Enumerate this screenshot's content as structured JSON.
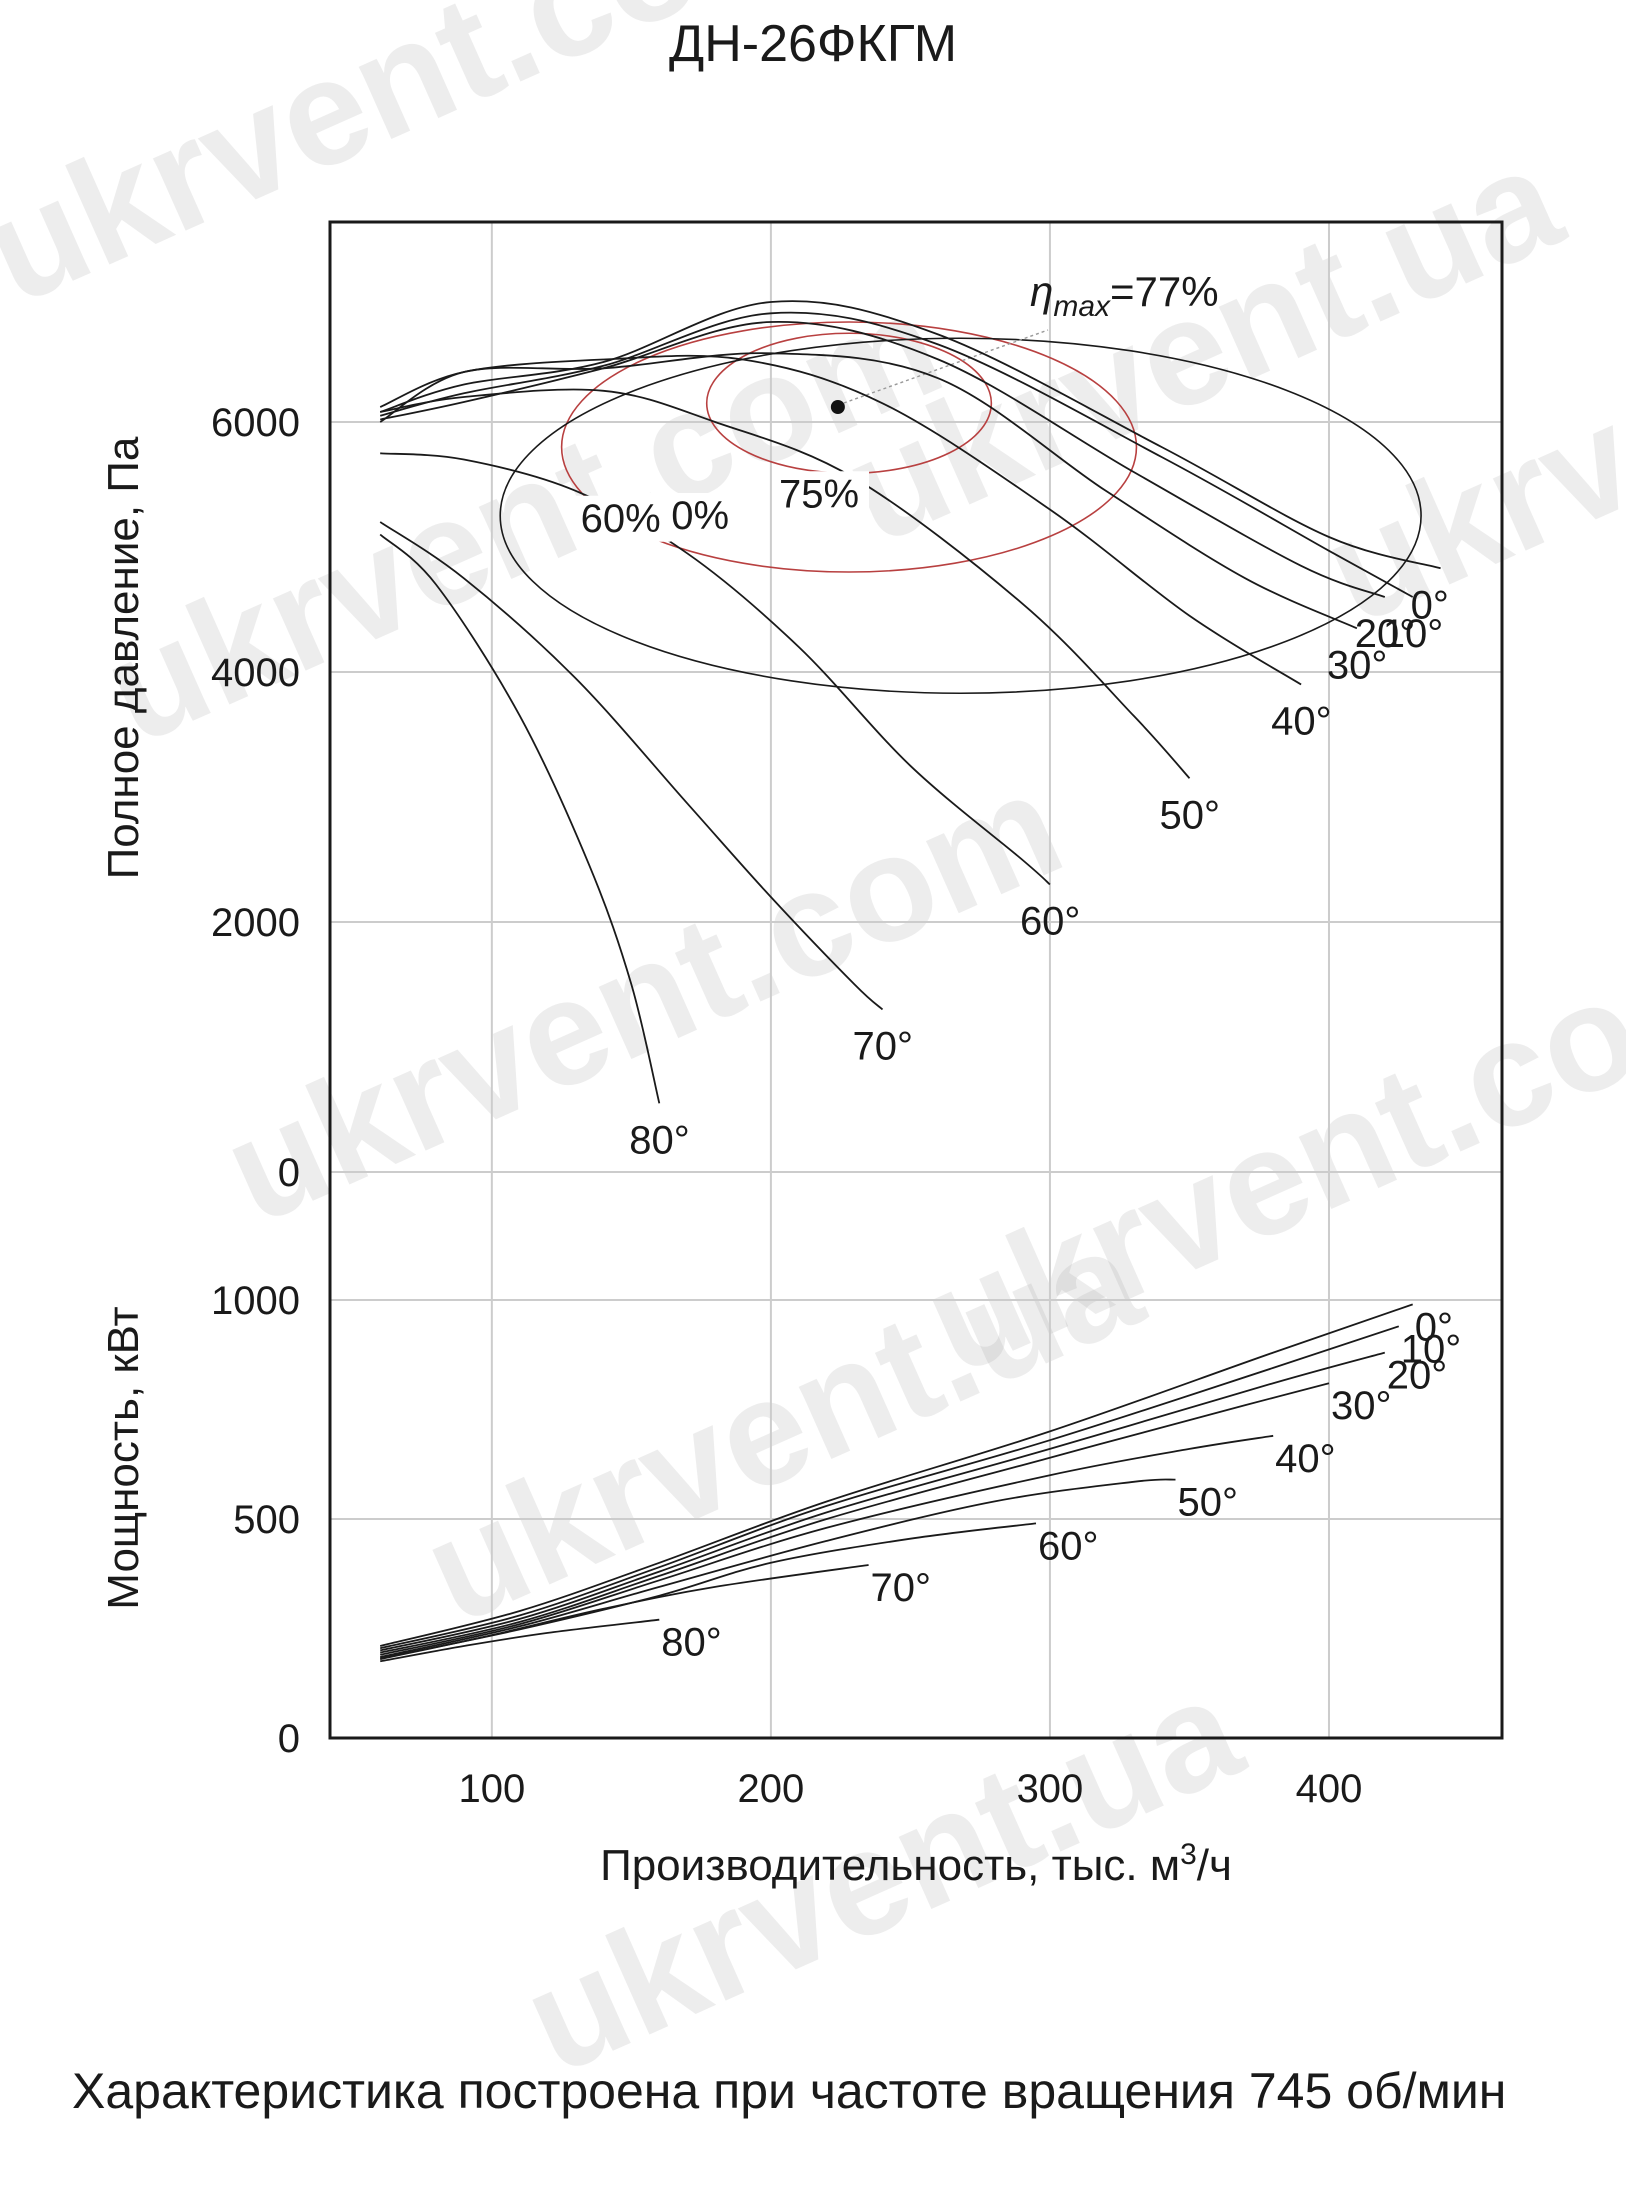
{
  "page": {
    "title": "ДН-26ФКГМ",
    "note": "Характеристика построена при частоте вращения 745 об/мин",
    "watermarks": [
      "ukrvent.com",
      "ukrvent.ua",
      "ukrvent.com",
      "ukrvent.ua",
      "ukrvent.com",
      "ukrvent.ua",
      "ukrvent.com",
      "ukrvent.ua"
    ]
  },
  "chart_data": [
    {
      "type": "line",
      "ylabel": "Полное давление, Па",
      "xlim": [
        42,
        462
      ],
      "ylim": [
        0,
        7600
      ],
      "yticks": [
        0,
        2000,
        4000,
        6000
      ],
      "grid": true,
      "color": "#1a1a1a",
      "efficiency_color": "#b84040",
      "eta_max_label": "ηmax=77%",
      "eta_max_point": {
        "x": 224,
        "y": 6120
      },
      "series": [
        {
          "name": "0°",
          "label": "0°",
          "x": [
            60,
            90,
            140,
            200,
            260,
            340,
            400,
            440
          ],
          "y": [
            6080,
            6300,
            6480,
            6960,
            6700,
            5800,
            5080,
            4830
          ]
        },
        {
          "name": "10°",
          "label": "10°",
          "x": [
            60,
            90,
            140,
            200,
            260,
            340,
            400,
            430
          ],
          "y": [
            6050,
            6230,
            6450,
            6870,
            6620,
            5720,
            4970,
            4600
          ]
        },
        {
          "name": "20°",
          "label": "20°",
          "x": [
            60,
            90,
            140,
            200,
            260,
            330,
            390,
            420
          ],
          "y": [
            6020,
            6160,
            6430,
            6800,
            6500,
            5600,
            4850,
            4600
          ]
        },
        {
          "name": "30°",
          "label": "30°",
          "x": [
            60,
            90,
            140,
            200,
            260,
            320,
            370,
            410
          ],
          "y": [
            6000,
            6400,
            6430,
            6550,
            6350,
            5450,
            4750,
            4350
          ]
        },
        {
          "name": "40°",
          "label": "40°",
          "x": [
            60,
            90,
            140,
            190,
            240,
            300,
            350,
            390
          ],
          "y": [
            6120,
            6400,
            6500,
            6500,
            6150,
            5300,
            4450,
            3900
          ]
        },
        {
          "name": "50°",
          "label": "50°",
          "x": [
            60,
            90,
            140,
            180,
            230,
            290,
            330,
            350
          ],
          "y": [
            6080,
            6200,
            6250,
            6000,
            5550,
            4550,
            3650,
            3150
          ]
        },
        {
          "name": "60°",
          "label": "60°",
          "x": [
            60,
            90,
            130,
            170,
            210,
            250,
            290,
            300
          ],
          "y": [
            5750,
            5700,
            5450,
            4950,
            4200,
            3250,
            2500,
            2300
          ]
        },
        {
          "name": "70°",
          "label": "70°",
          "x": [
            60,
            90,
            130,
            170,
            200,
            230,
            240
          ],
          "y": [
            5200,
            4750,
            3950,
            2950,
            2200,
            1500,
            1300
          ]
        },
        {
          "name": "80°",
          "label": "80°",
          "x": [
            60,
            80,
            110,
            135,
            150,
            160
          ],
          "y": [
            5100,
            4700,
            3650,
            2450,
            1500,
            550
          ]
        }
      ],
      "efficiency_contours": [
        {
          "label": "75%",
          "center": {
            "x": 228,
            "y": 6150
          },
          "rx": 51,
          "ry": 560
        },
        {
          "label": "70%",
          "center": {
            "x": 228,
            "y": 5800
          },
          "rx": 103,
          "ry": 1000
        },
        {
          "label": "60%",
          "center": {
            "x": 268,
            "y": 5250
          },
          "rx": 165,
          "ry": 1420
        }
      ]
    },
    {
      "type": "line",
      "ylabel": "Мощность, кВт",
      "xlabel": "Производительность, тыс. м³/ч",
      "xlim": [
        42,
        462
      ],
      "ylim": [
        0,
        1000
      ],
      "yticks": [
        0,
        500,
        1000
      ],
      "xticks": [
        100,
        200,
        300,
        400
      ],
      "grid": true,
      "series": [
        {
          "name": "0°",
          "label": "0°",
          "x": [
            60,
            110,
            160,
            220,
            300,
            380,
            430
          ],
          "y": [
            210,
            290,
            400,
            540,
            700,
            880,
            990
          ]
        },
        {
          "name": "10°",
          "label": "10°",
          "x": [
            60,
            110,
            160,
            220,
            300,
            380,
            425
          ],
          "y": [
            205,
            280,
            390,
            530,
            680,
            845,
            940
          ]
        },
        {
          "name": "20°",
          "label": "20°",
          "x": [
            60,
            110,
            160,
            220,
            300,
            380,
            420
          ],
          "y": [
            200,
            272,
            380,
            515,
            660,
            810,
            880
          ]
        },
        {
          "name": "30°",
          "label": "30°",
          "x": [
            60,
            110,
            160,
            220,
            300,
            370,
            400
          ],
          "y": [
            195,
            265,
            370,
            500,
            640,
            760,
            810
          ]
        },
        {
          "name": "40°",
          "label": "40°",
          "x": [
            60,
            110,
            160,
            220,
            300,
            350,
            380
          ],
          "y": [
            190,
            260,
            360,
            480,
            600,
            660,
            690
          ]
        },
        {
          "name": "50°",
          "label": "50°",
          "x": [
            60,
            110,
            160,
            220,
            280,
            330,
            345
          ],
          "y": [
            185,
            255,
            345,
            450,
            540,
            585,
            590
          ]
        },
        {
          "name": "60°",
          "label": "60°",
          "x": [
            60,
            110,
            160,
            200,
            250,
            295
          ],
          "y": [
            182,
            248,
            325,
            400,
            455,
            490
          ]
        },
        {
          "name": "70°",
          "label": "70°",
          "x": [
            60,
            100,
            140,
            180,
            235
          ],
          "y": [
            180,
            235,
            295,
            345,
            395
          ]
        },
        {
          "name": "80°",
          "label": "80°",
          "x": [
            60,
            90,
            120,
            160
          ],
          "y": [
            175,
            210,
            240,
            270
          ]
        }
      ]
    }
  ]
}
